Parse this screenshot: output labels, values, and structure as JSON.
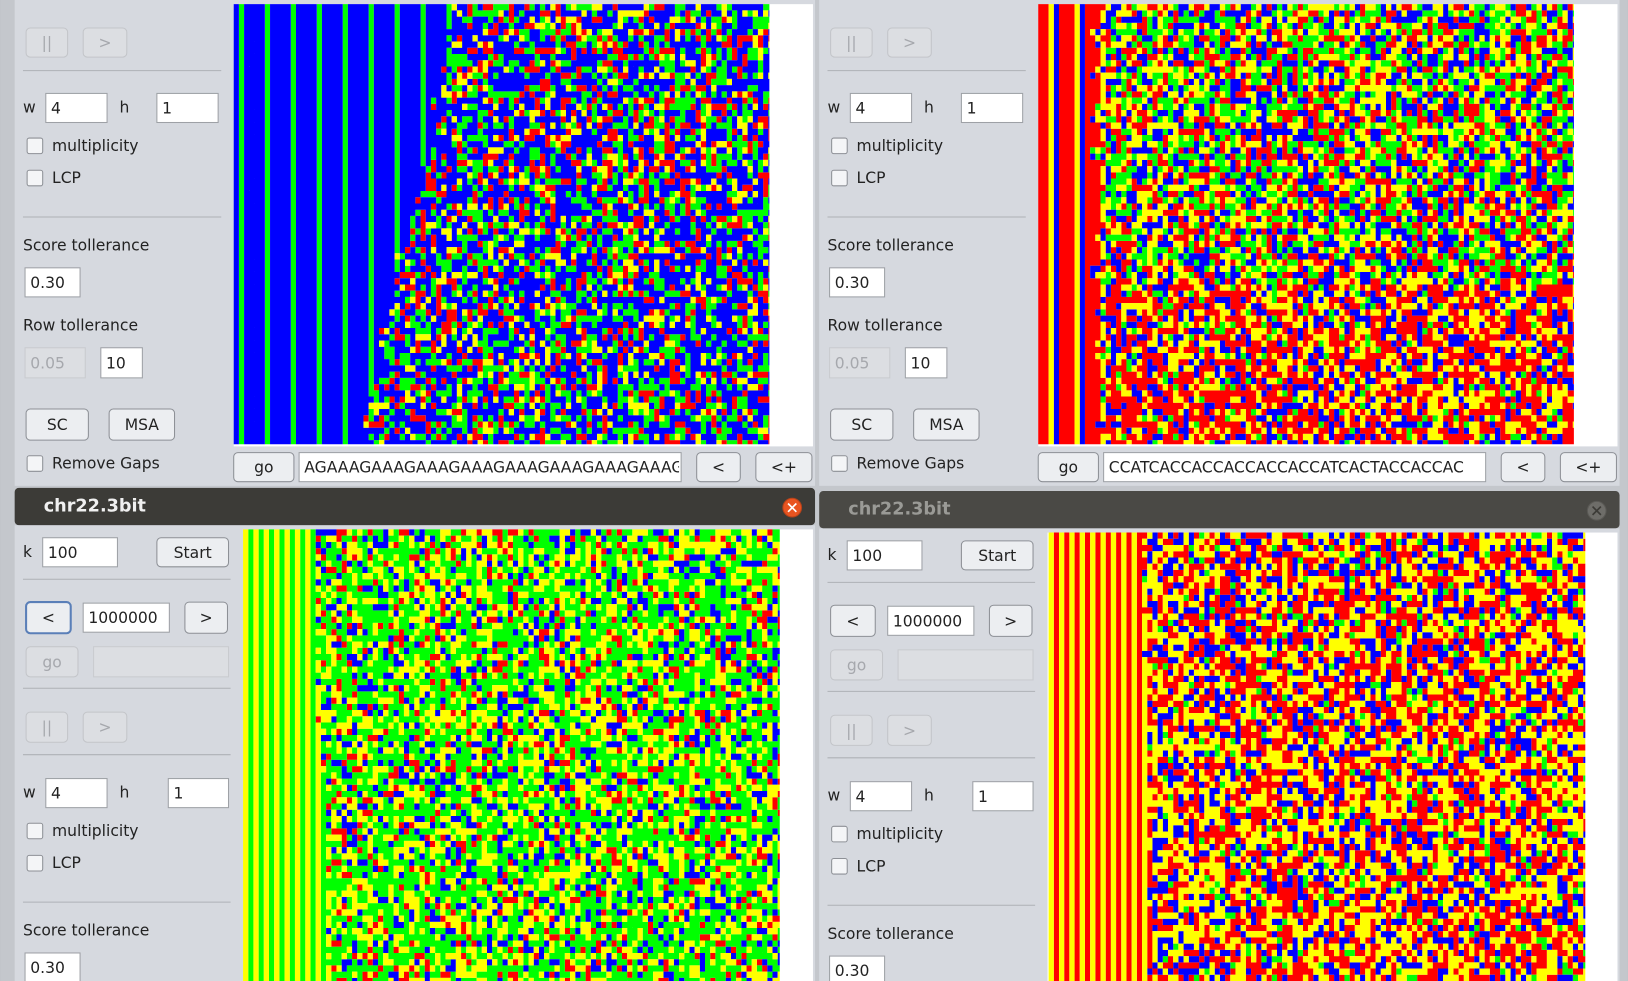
{
  "windows": [
    {
      "pause": "||",
      "play": ">",
      "w_label": "w",
      "w": "4",
      "h_label": "h",
      "h": "1",
      "multiplicity": "multiplicity",
      "lcp": "LCP",
      "score_label": "Score tollerance",
      "score": "0.30",
      "row_label": "Row tollerance",
      "row_min": "0.05",
      "row_max": "10",
      "sc": "SC",
      "msa": "MSA",
      "remove_gaps": "Remove Gaps",
      "go": "go",
      "sequence": "AGAAAGAAAGAAAGAAAGAAAGAAAGAAAGAAAG",
      "prev": "<",
      "add": "<+"
    },
    {
      "pause": "||",
      "play": ">",
      "w_label": "w",
      "w": "4",
      "h_label": "h",
      "h": "1",
      "multiplicity": "multiplicity",
      "lcp": "LCP",
      "score_label": "Score tollerance",
      "score": "0.30",
      "row_label": "Row tollerance",
      "row_min": "0.05",
      "row_max": "10",
      "sc": "SC",
      "msa": "MSA",
      "remove_gaps": "Remove Gaps",
      "go": "go",
      "sequence": "CCATCACCACCACCACCACCATCACTACCACCAC",
      "prev": "<",
      "add": "<+"
    },
    {
      "title": "chr22.3bit",
      "k_label": "k",
      "k": "100",
      "start": "Start",
      "prev": "<",
      "position": "1000000",
      "next": ">",
      "go": "go",
      "pause": "||",
      "play": ">",
      "w_label": "w",
      "w": "4",
      "h_label": "h",
      "h": "1",
      "multiplicity": "multiplicity",
      "lcp": "LCP",
      "score_label": "Score tollerance",
      "score": "0.30"
    },
    {
      "title": "chr22.3bit",
      "k_label": "k",
      "k": "100",
      "start": "Start",
      "prev": "<",
      "position": "1000000",
      "next": ">",
      "go": "go",
      "pause": "||",
      "play": ">",
      "w_label": "w",
      "w": "4",
      "h_label": "h",
      "h": "1",
      "multiplicity": "multiplicity",
      "lcp": "LCP",
      "score_label": "Score tollerance",
      "score": "0.30"
    }
  ]
}
